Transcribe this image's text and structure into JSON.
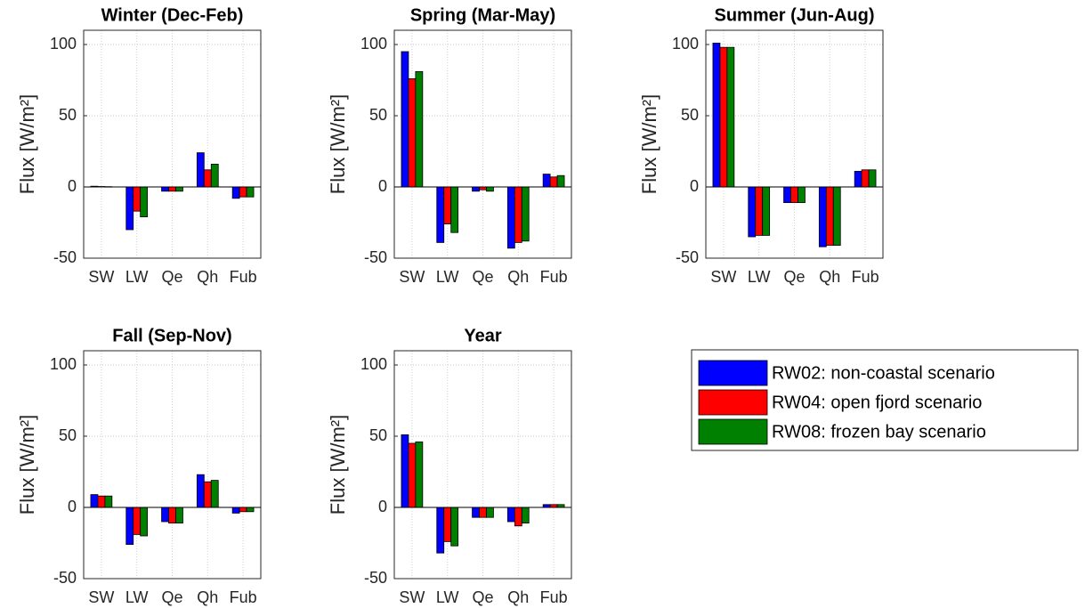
{
  "chart_data": [
    {
      "type": "bar",
      "title": "Winter (Dec-Feb)",
      "y_label": "Flux [W/m²]",
      "categories": [
        "SW",
        "LW",
        "Qe",
        "Qh",
        "Fub"
      ],
      "series": [
        {
          "name": "RW02: non-coastal scenario",
          "color": "#0000ff",
          "values": [
            0.5,
            -30,
            -3,
            24,
            -8
          ]
        },
        {
          "name": "RW04: open fjord scenario",
          "color": "#ff0000",
          "values": [
            0.3,
            -17,
            -3,
            12,
            -7
          ]
        },
        {
          "name": "RW08: frozen bay scenario",
          "color": "#008000",
          "values": [
            0.2,
            -21,
            -3,
            16,
            -7
          ]
        }
      ],
      "ylim": [
        -50,
        110
      ],
      "yticks": [
        -50,
        0,
        50,
        100
      ],
      "grid": true
    },
    {
      "type": "bar",
      "title": "Spring (Mar-May)",
      "y_label": "Flux [W/m²]",
      "categories": [
        "SW",
        "LW",
        "Qe",
        "Qh",
        "Fub"
      ],
      "series": [
        {
          "name": "RW02: non-coastal scenario",
          "color": "#0000ff",
          "values": [
            95,
            -39,
            -3,
            -43,
            9
          ]
        },
        {
          "name": "RW04: open fjord scenario",
          "color": "#ff0000",
          "values": [
            76,
            -26,
            -2,
            -39,
            7
          ]
        },
        {
          "name": "RW08: frozen bay scenario",
          "color": "#008000",
          "values": [
            81,
            -32,
            -3,
            -38,
            8
          ]
        }
      ],
      "ylim": [
        -50,
        110
      ],
      "yticks": [
        -50,
        0,
        50,
        100
      ],
      "grid": true
    },
    {
      "type": "bar",
      "title": "Summer (Jun-Aug)",
      "y_label": "Flux [W/m²]",
      "categories": [
        "SW",
        "LW",
        "Qe",
        "Qh",
        "Fub"
      ],
      "series": [
        {
          "name": "RW02: non-coastal scenario",
          "color": "#0000ff",
          "values": [
            101,
            -35,
            -11,
            -42,
            11
          ]
        },
        {
          "name": "RW04: open fjord scenario",
          "color": "#ff0000",
          "values": [
            98,
            -34,
            -11,
            -41,
            12
          ]
        },
        {
          "name": "RW08: frozen bay scenario",
          "color": "#008000",
          "values": [
            98,
            -34,
            -11,
            -41,
            12
          ]
        }
      ],
      "ylim": [
        -50,
        110
      ],
      "yticks": [
        -50,
        0,
        50,
        100
      ],
      "grid": true
    },
    {
      "type": "bar",
      "title": "Fall (Sep-Nov)",
      "y_label": "Flux [W/m²]",
      "categories": [
        "SW",
        "LW",
        "Qe",
        "Qh",
        "Fub"
      ],
      "series": [
        {
          "name": "RW02: non-coastal scenario",
          "color": "#0000ff",
          "values": [
            9,
            -26,
            -10,
            23,
            -4
          ]
        },
        {
          "name": "RW04: open fjord scenario",
          "color": "#ff0000",
          "values": [
            8,
            -19,
            -11,
            18,
            -3
          ]
        },
        {
          "name": "RW08: frozen bay scenario",
          "color": "#008000",
          "values": [
            8,
            -20,
            -11,
            19,
            -3
          ]
        }
      ],
      "ylim": [
        -50,
        110
      ],
      "yticks": [
        -50,
        0,
        50,
        100
      ],
      "grid": true
    },
    {
      "type": "bar",
      "title": "Year",
      "y_label": "Flux [W/m²]",
      "categories": [
        "SW",
        "LW",
        "Qe",
        "Qh",
        "Fub"
      ],
      "series": [
        {
          "name": "RW02: non-coastal scenario",
          "color": "#0000ff",
          "values": [
            51,
            -32,
            -7,
            -10,
            2
          ]
        },
        {
          "name": "RW04: open fjord scenario",
          "color": "#ff0000",
          "values": [
            45,
            -24,
            -7,
            -13,
            2
          ]
        },
        {
          "name": "RW08: frozen bay scenario",
          "color": "#008000",
          "values": [
            46,
            -27,
            -7,
            -11,
            2
          ]
        }
      ],
      "ylim": [
        -50,
        110
      ],
      "yticks": [
        -50,
        0,
        50,
        100
      ],
      "grid": true
    }
  ]
}
